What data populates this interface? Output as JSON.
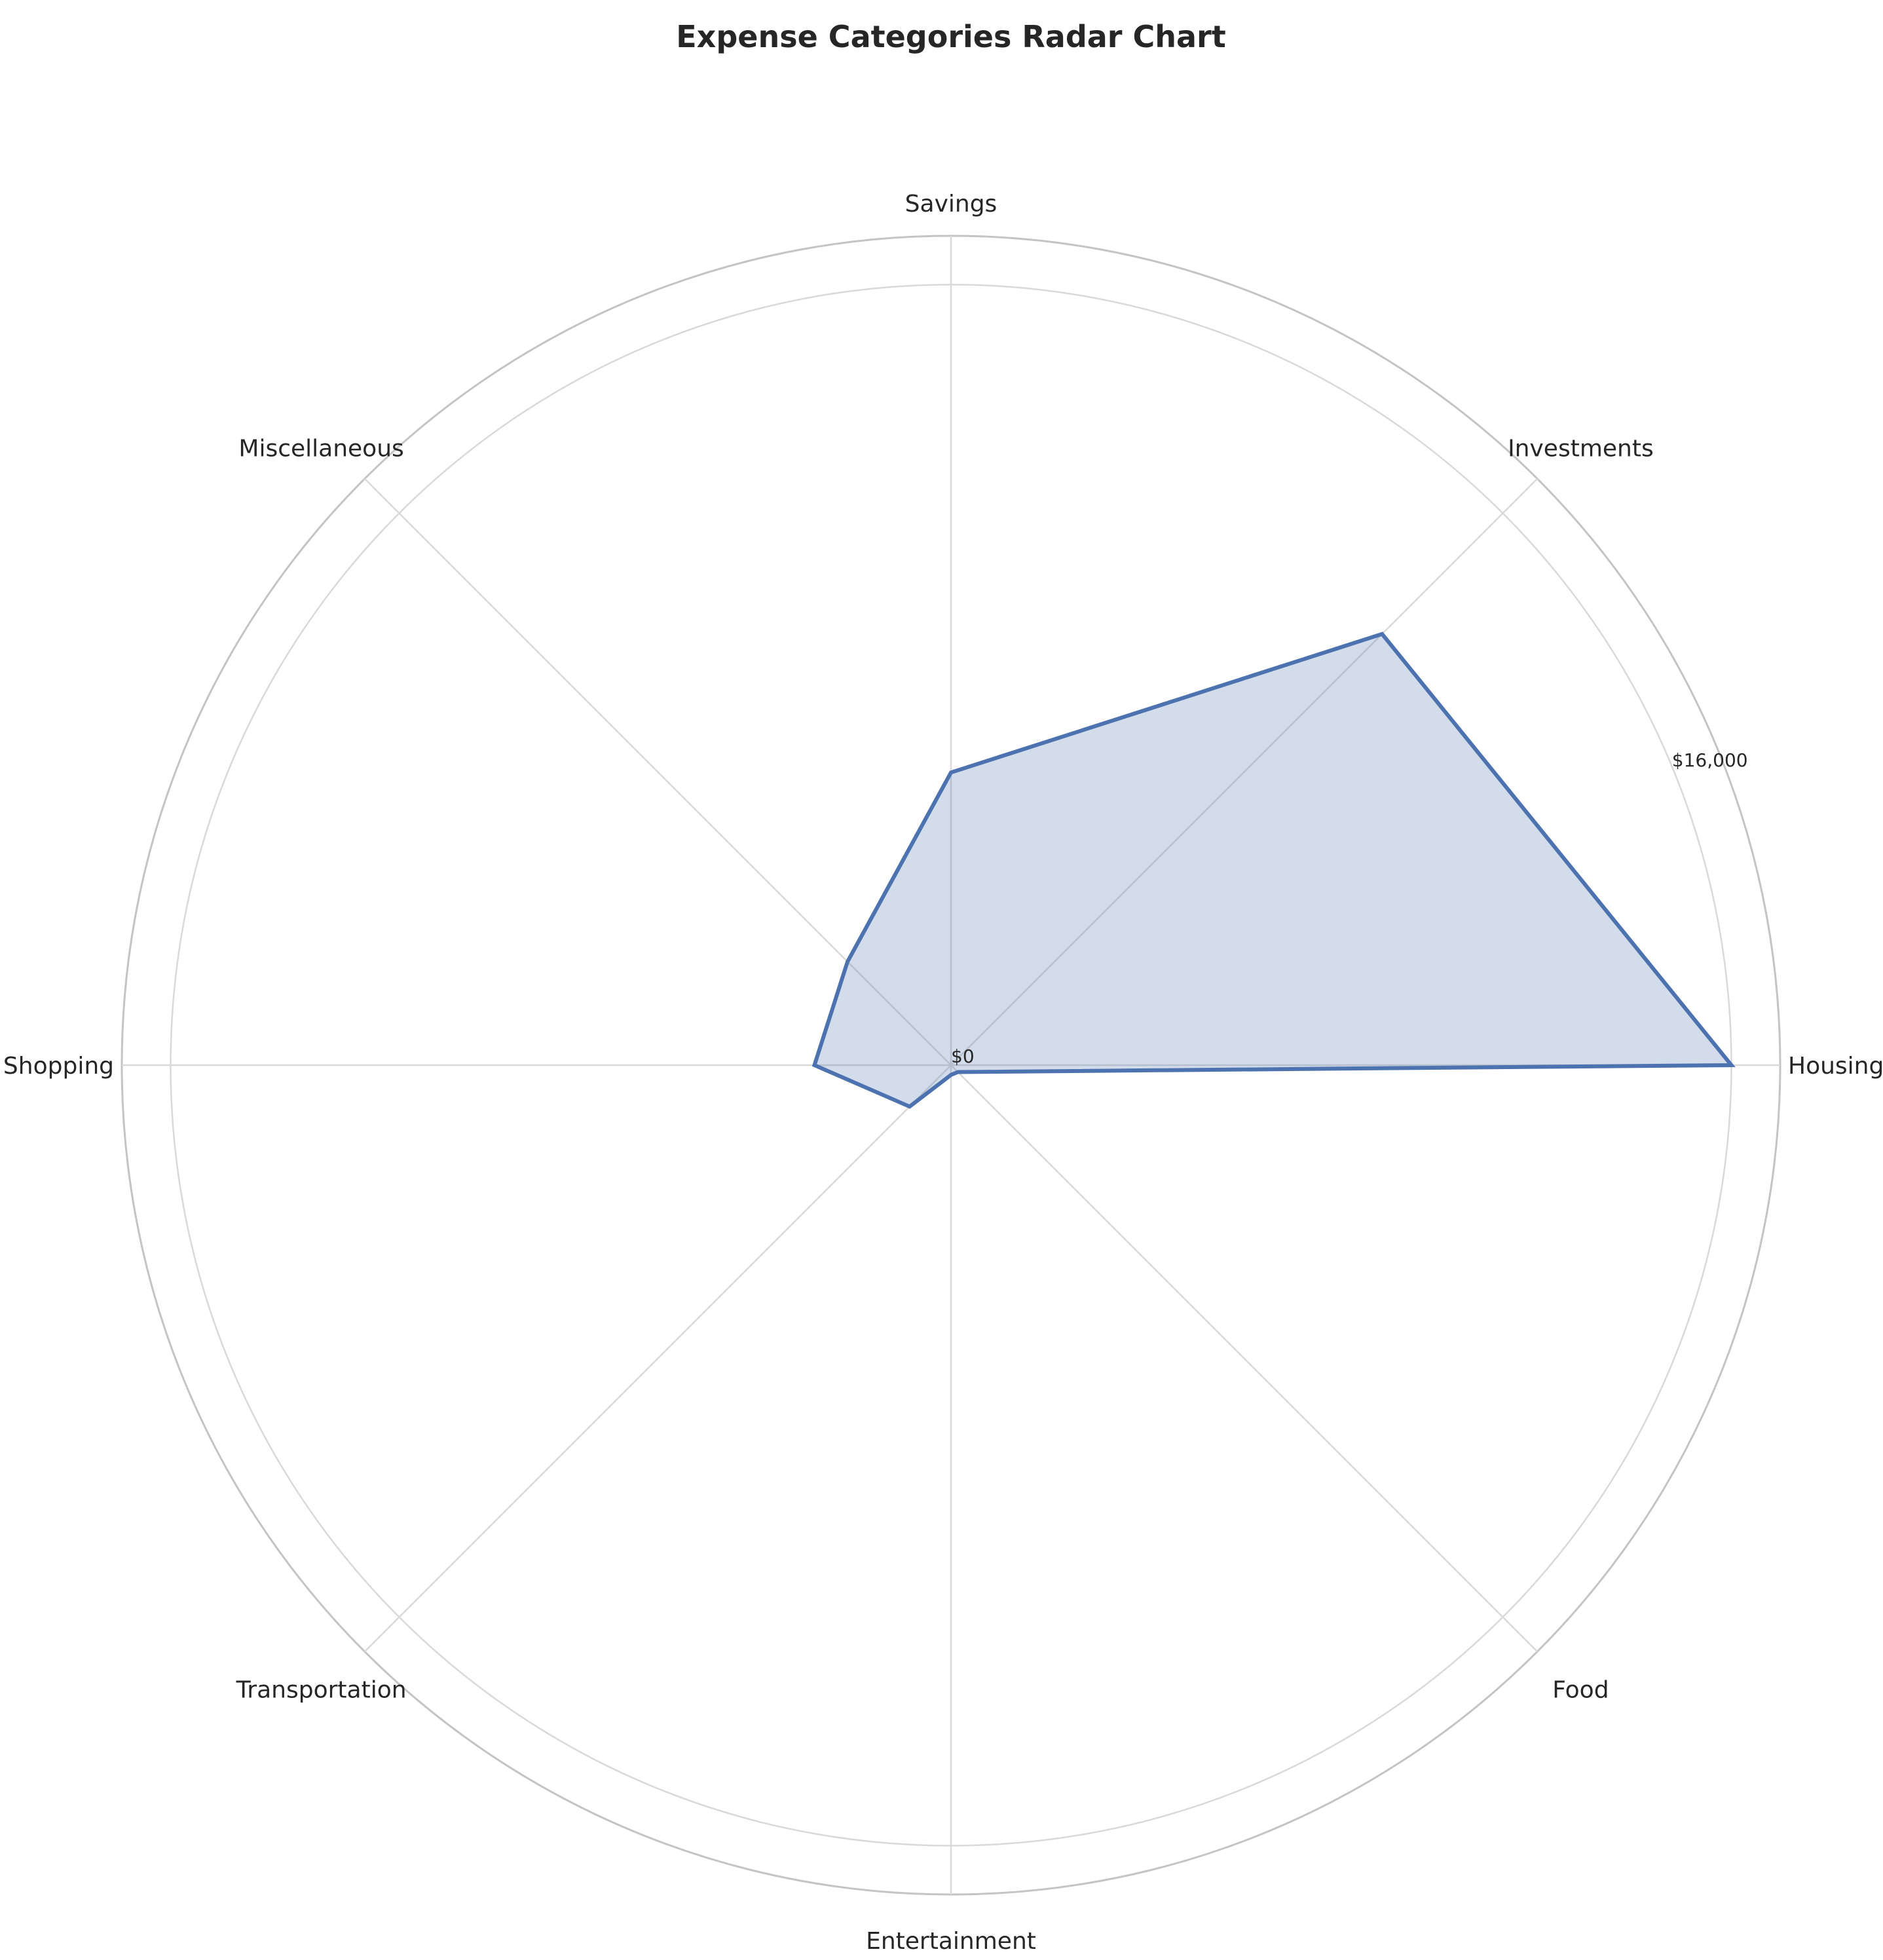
{
  "chart_data": {
    "type": "radar",
    "title": "Expense Categories Radar Chart",
    "categories": [
      "Housing",
      "Investments",
      "Savings",
      "Miscellaneous",
      "Shopping",
      "Transportation",
      "Entertainment",
      "Food"
    ],
    "series": [
      {
        "values": [
          16000,
          12500,
          6000,
          3000,
          2800,
          1200,
          200,
          200
        ]
      }
    ],
    "rlim": [
      0,
      17000
    ],
    "radial_ticks": [
      0,
      16000
    ],
    "radial_tick_labels": [
      "$0",
      "$16,000"
    ],
    "grid": true,
    "colors": {
      "line": "#4c72b0",
      "fill": "#4c72b0",
      "grid": "#d9d9d9",
      "frame": "#c4c4c4"
    }
  }
}
